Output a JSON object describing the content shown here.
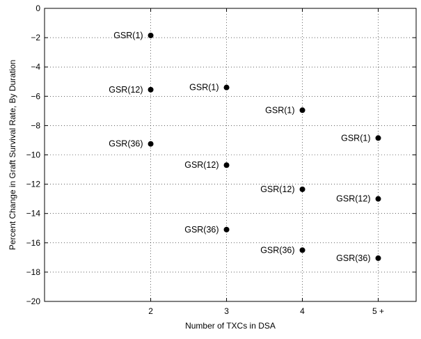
{
  "chart_data": {
    "type": "scatter",
    "title": "",
    "xlabel": "Number of TXCs in DSA",
    "ylabel": "Percent Change in Graft Survival Rate, By Duration",
    "x_categories": [
      "2",
      "3",
      "4",
      "5 +"
    ],
    "x_positions": [
      2,
      3,
      4,
      5
    ],
    "xlim": [
      0.6,
      5.5
    ],
    "ylim": [
      -20,
      0
    ],
    "yticks": [
      0,
      -2,
      -4,
      -6,
      -8,
      -10,
      -12,
      -14,
      -16,
      -18,
      -20
    ],
    "ytick_labels": [
      "0",
      "−2",
      "−4",
      "−6",
      "−8",
      "−10",
      "−12",
      "−14",
      "−16",
      "−18",
      "−20"
    ],
    "grid": true,
    "marker_color": "#000000",
    "points": [
      {
        "x": 2,
        "y": -1.85,
        "label": "GSR(1)"
      },
      {
        "x": 2,
        "y": -5.55,
        "label": "GSR(12)"
      },
      {
        "x": 2,
        "y": -9.25,
        "label": "GSR(36)"
      },
      {
        "x": 3,
        "y": -5.4,
        "label": "GSR(1)"
      },
      {
        "x": 3,
        "y": -10.7,
        "label": "GSR(12)"
      },
      {
        "x": 3,
        "y": -15.1,
        "label": "GSR(36)"
      },
      {
        "x": 4,
        "y": -6.95,
        "label": "GSR(1)"
      },
      {
        "x": 4,
        "y": -12.35,
        "label": "GSR(12)"
      },
      {
        "x": 4,
        "y": -16.5,
        "label": "GSR(36)"
      },
      {
        "x": 5,
        "y": -8.85,
        "label": "GSR(1)"
      },
      {
        "x": 5,
        "y": -13.0,
        "label": "GSR(12)"
      },
      {
        "x": 5,
        "y": -17.05,
        "label": "GSR(36)"
      }
    ]
  }
}
